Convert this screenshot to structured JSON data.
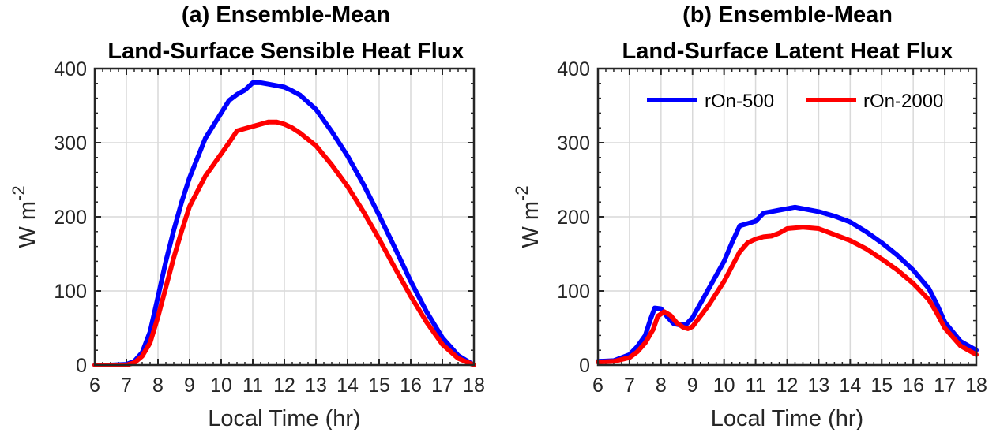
{
  "chart_data": [
    {
      "type": "line",
      "title": [
        "(a) Ensemble-Mean",
        "Land-Surface Sensible Heat Flux"
      ],
      "xlabel": "Local Time (hr)",
      "ylabel": "W m",
      "ylabel_superscript": "-2",
      "xlim": [
        6,
        18
      ],
      "ylim": [
        0,
        400
      ],
      "xticks": [
        "6",
        "7",
        "8",
        "9",
        "10",
        "11",
        "12",
        "13",
        "14",
        "15",
        "16",
        "17",
        "18"
      ],
      "yticks": [
        "0",
        "100",
        "200",
        "300",
        "400"
      ],
      "grid": true,
      "legend": null,
      "series": [
        {
          "name": "rOn-500",
          "color": "#0000ff",
          "x": [
            6,
            6.5,
            7,
            7.25,
            7.5,
            7.75,
            8,
            8.25,
            8.5,
            8.75,
            9,
            9.5,
            10,
            10.25,
            10.5,
            10.75,
            11,
            11.25,
            11.5,
            11.75,
            12,
            12.25,
            12.5,
            13,
            13.5,
            14,
            14.5,
            15,
            15.5,
            16,
            16.5,
            17,
            17.5,
            18
          ],
          "y": [
            0,
            0,
            1,
            5,
            17,
            45,
            92,
            140,
            182,
            220,
            253,
            306,
            340,
            357,
            365,
            371,
            381,
            381,
            379,
            377,
            375,
            370,
            364,
            345,
            315,
            282,
            244,
            202,
            158,
            113,
            72,
            37,
            13,
            0
          ]
        },
        {
          "name": "rOn-2000",
          "color": "#ff0000",
          "x": [
            6,
            6.5,
            7,
            7.25,
            7.5,
            7.75,
            8,
            8.25,
            8.5,
            8.75,
            9,
            9.5,
            10,
            10.25,
            10.5,
            10.75,
            11,
            11.25,
            11.5,
            11.75,
            12,
            12.25,
            12.5,
            13,
            13.5,
            14,
            14.5,
            15,
            15.5,
            16,
            16.5,
            17,
            17.5,
            18
          ],
          "y": [
            0,
            0,
            0,
            3,
            12,
            30,
            65,
            105,
            145,
            181,
            214,
            255,
            285,
            300,
            316,
            319,
            322,
            325,
            328,
            328,
            325,
            320,
            313,
            296,
            270,
            241,
            207,
            170,
            131,
            93,
            58,
            28,
            9,
            0
          ]
        }
      ]
    },
    {
      "type": "line",
      "title": [
        "(b) Ensemble-Mean",
        "Land-Surface Latent Heat Flux"
      ],
      "xlabel": "Local Time (hr)",
      "ylabel": "W m",
      "ylabel_superscript": "-2",
      "xlim": [
        6,
        18
      ],
      "ylim": [
        0,
        400
      ],
      "xticks": [
        "6",
        "7",
        "8",
        "9",
        "10",
        "11",
        "12",
        "13",
        "14",
        "15",
        "16",
        "17",
        "18"
      ],
      "yticks": [
        "0",
        "100",
        "200",
        "300",
        "400"
      ],
      "grid": true,
      "legend": "top-right",
      "series": [
        {
          "name": "rOn-500",
          "color": "#0000ff",
          "x": [
            6,
            6.5,
            7,
            7.25,
            7.5,
            7.65,
            7.8,
            8,
            8.2,
            8.4,
            8.6,
            8.8,
            9,
            9.5,
            10,
            10.25,
            10.5,
            10.75,
            11,
            11.25,
            11.5,
            11.75,
            12,
            12.25,
            12.5,
            13,
            13.5,
            14,
            14.5,
            15,
            15.5,
            16,
            16.5,
            16.75,
            17,
            17.5,
            18
          ],
          "y": [
            5,
            6,
            14,
            25,
            40,
            60,
            77,
            76,
            65,
            56,
            54,
            55,
            64,
            102,
            140,
            165,
            188,
            191,
            194,
            205,
            207,
            209,
            211,
            213,
            211,
            207,
            201,
            193,
            180,
            165,
            148,
            128,
            103,
            82,
            58,
            32,
            20
          ]
        },
        {
          "name": "rOn-2000",
          "color": "#ff0000",
          "x": [
            6,
            6.5,
            7,
            7.25,
            7.5,
            7.75,
            7.9,
            8.1,
            8.3,
            8.5,
            8.7,
            8.85,
            9,
            9.5,
            10,
            10.25,
            10.5,
            10.75,
            11,
            11.25,
            11.5,
            11.75,
            12,
            12.25,
            12.5,
            13,
            13.5,
            14,
            14.5,
            15,
            15.5,
            16,
            16.5,
            16.75,
            17,
            17.5,
            18
          ],
          "y": [
            4,
            5,
            10,
            18,
            30,
            48,
            66,
            72,
            67,
            57,
            51,
            49,
            52,
            80,
            113,
            133,
            153,
            165,
            170,
            173,
            174,
            178,
            184,
            185,
            186,
            184,
            176,
            168,
            157,
            143,
            128,
            110,
            88,
            70,
            50,
            26,
            14
          ]
        }
      ]
    }
  ]
}
